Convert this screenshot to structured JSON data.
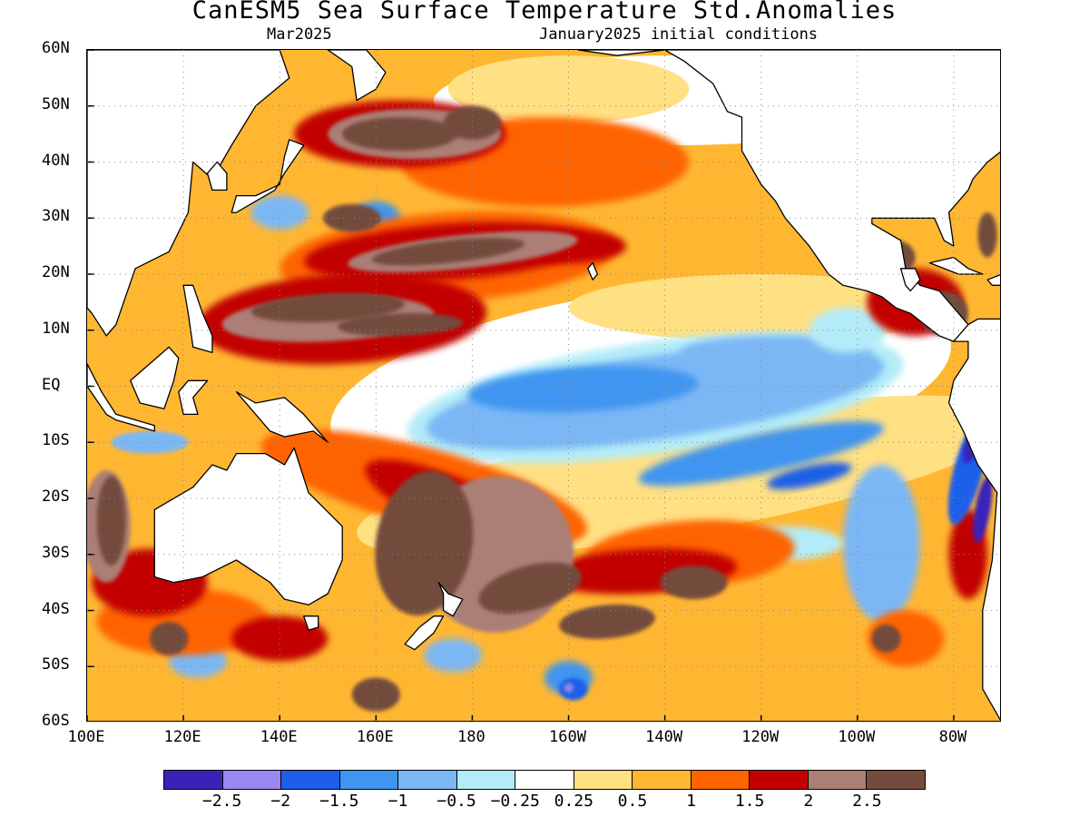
{
  "title": "CanESM5 Sea Surface Temperature Std.Anomalies",
  "subtitle_left": "Mar2025",
  "subtitle_right": "January2025 initial conditions",
  "axes": {
    "lon_range": [
      100,
      290
    ],
    "lat_range": [
      -60,
      60
    ],
    "lat_ticks": [
      "60N",
      "50N",
      "40N",
      "30N",
      "20N",
      "10N",
      "EQ",
      "10S",
      "20S",
      "30S",
      "40S",
      "50S",
      "60S"
    ],
    "lon_ticks": [
      "100E",
      "120E",
      "140E",
      "160E",
      "180",
      "160W",
      "140W",
      "120W",
      "100W",
      "80W"
    ],
    "grid": "dotted"
  },
  "colorbar": {
    "colors": [
      "#3a22b8",
      "#9a87f2",
      "#1e5ee8",
      "#3f95f0",
      "#7cb7f5",
      "#b3ecf8",
      "#ffffff",
      "#ffe083",
      "#ffb732",
      "#ff6400",
      "#c20000",
      "#ac7f76",
      "#734c3d"
    ],
    "labels": [
      "−2.5",
      "−2",
      "−1.5",
      "−1",
      "−0.5",
      "−0.25",
      "0.25",
      "0.5",
      "1",
      "1.5",
      "2",
      "2.5"
    ]
  },
  "anomaly_field": {
    "units": "standard deviations",
    "features": [
      {
        "region": "central-eastern equatorial Pacific",
        "lon": [
          190,
          260
        ],
        "lat": [
          -10,
          8
        ],
        "value": -1.2
      },
      {
        "region": "western tropical Pacific",
        "lon": [
          120,
          180
        ],
        "lat": [
          5,
          15
        ],
        "value": 2.4
      },
      {
        "region": "north Pacific mid-latitudes",
        "lon": [
          140,
          230
        ],
        "lat": [
          20,
          50
        ],
        "value": 2.0
      },
      {
        "region": "southwest Pacific / Tasman Sea",
        "lon": [
          150,
          200
        ],
        "lat": [
          -50,
          -15
        ],
        "value": 2.5
      },
      {
        "region": "south Pacific subtropics",
        "lon": [
          200,
          270
        ],
        "lat": [
          -45,
          -20
        ],
        "value": 1.5
      },
      {
        "region": "Gulf of Mexico / Caribbean",
        "lon": [
          262,
          290
        ],
        "lat": [
          10,
          30
        ],
        "value": 2.5
      },
      {
        "region": "Peru-Chile coast",
        "lon": [
          280,
          290
        ],
        "lat": [
          -40,
          -5
        ],
        "value": -2.3
      },
      {
        "region": "eastern Indian Ocean off Australia",
        "lon": [
          100,
          115
        ],
        "lat": [
          -40,
          -15
        ],
        "value": 2.5
      }
    ]
  }
}
